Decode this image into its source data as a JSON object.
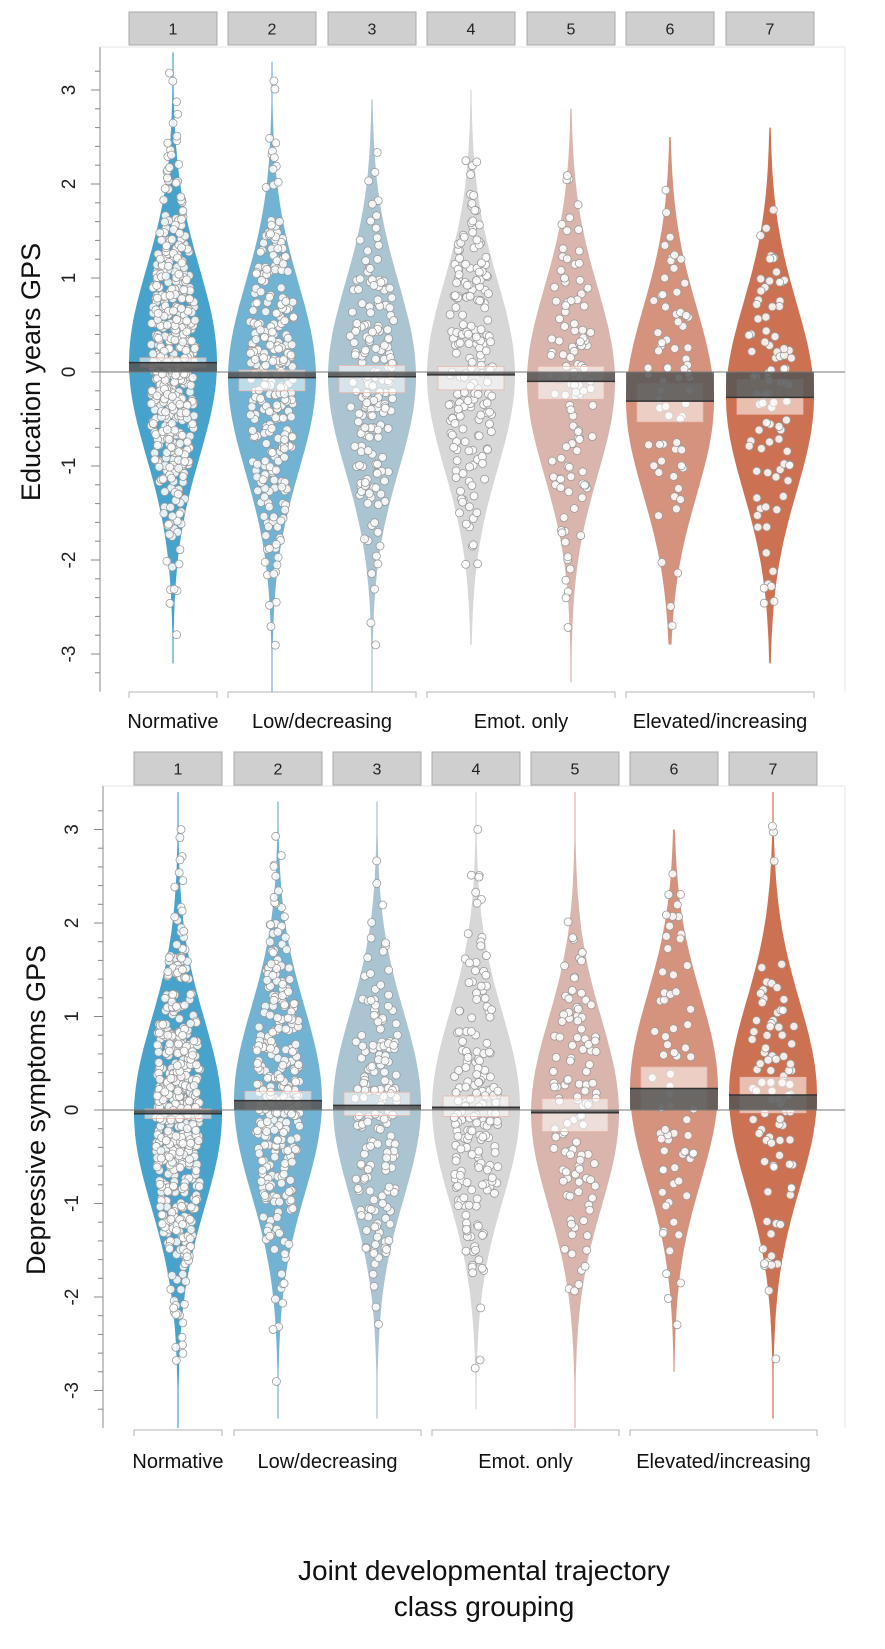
{
  "chart_data": [
    {
      "type": "violin",
      "ylabel": "Education years GPS",
      "ylim": [
        -3.4,
        3.4
      ],
      "yticks": [
        3,
        2,
        1,
        0,
        -1,
        -2,
        -3
      ],
      "ytick_labels": [
        "3",
        "2",
        "1",
        "0",
        "-1",
        "-2",
        "-3"
      ],
      "classes": [
        "1",
        "2",
        "3",
        "4",
        "5",
        "6",
        "7"
      ],
      "groups": [
        {
          "label": "Normative",
          "classes": [
            "1"
          ]
        },
        {
          "label": "Low/decreasing",
          "classes": [
            "2",
            "3"
          ]
        },
        {
          "label": "Emot. only",
          "classes": [
            "4",
            "5"
          ]
        },
        {
          "label": "Elevated/increasing",
          "classes": [
            "6",
            "7"
          ]
        }
      ],
      "colors": [
        "#3d9dc9",
        "#6aaed0",
        "#a7c1cf",
        "#d5d5d5",
        "#d8b1aa",
        "#d38d76",
        "#c96a49"
      ],
      "series": [
        {
          "class": "1",
          "mean": 0.1,
          "ci": [
            0.05,
            0.15
          ],
          "range": [
            -3.1,
            3.4
          ],
          "n": 520
        },
        {
          "class": "2",
          "mean": -0.06,
          "ci": [
            -0.2,
            0.02
          ],
          "range": [
            -3.4,
            3.3
          ],
          "n": 300
        },
        {
          "class": "3",
          "mean": -0.05,
          "ci": [
            -0.22,
            0.07
          ],
          "range": [
            -3.4,
            2.9
          ],
          "n": 180
        },
        {
          "class": "4",
          "mean": -0.03,
          "ci": [
            -0.19,
            0.06
          ],
          "range": [
            -2.9,
            3.0
          ],
          "n": 190
        },
        {
          "class": "5",
          "mean": -0.1,
          "ci": [
            -0.29,
            0.06
          ],
          "range": [
            -3.3,
            2.8
          ],
          "n": 115
        },
        {
          "class": "6",
          "mean": -0.31,
          "ci": [
            -0.53,
            -0.12
          ],
          "range": [
            -2.9,
            2.5
          ],
          "n": 70
        },
        {
          "class": "7",
          "mean": -0.27,
          "ci": [
            -0.45,
            -0.08
          ],
          "range": [
            -3.1,
            2.6
          ],
          "n": 90
        }
      ]
    },
    {
      "type": "violin",
      "ylabel": "Depressive symptoms GPS",
      "xlabel": "Joint developmental trajectory class grouping",
      "ylim": [
        -3.4,
        3.4
      ],
      "yticks": [
        3,
        2,
        1,
        0,
        -1,
        -2,
        -3
      ],
      "ytick_labels": [
        "3",
        "2",
        "1",
        "0",
        "-1",
        "-2",
        "-3"
      ],
      "classes": [
        "1",
        "2",
        "3",
        "4",
        "5",
        "6",
        "7"
      ],
      "groups": [
        {
          "label": "Normative",
          "classes": [
            "1"
          ]
        },
        {
          "label": "Low/decreasing",
          "classes": [
            "2",
            "3"
          ]
        },
        {
          "label": "Emot. only",
          "classes": [
            "4",
            "5"
          ]
        },
        {
          "label": "Elevated/increasing",
          "classes": [
            "6",
            "7"
          ]
        }
      ],
      "colors": [
        "#3d9dc9",
        "#6aaed0",
        "#a7c1cf",
        "#d5d5d5",
        "#d8b1aa",
        "#d38d76",
        "#c96a49"
      ],
      "series": [
        {
          "class": "1",
          "mean": -0.04,
          "ci": [
            -0.09,
            0.01
          ],
          "range": [
            -3.4,
            3.4
          ],
          "n": 520
        },
        {
          "class": "2",
          "mean": 0.1,
          "ci": [
            0.0,
            0.2
          ],
          "range": [
            -3.3,
            3.3
          ],
          "n": 300
        },
        {
          "class": "3",
          "mean": 0.05,
          "ci": [
            -0.06,
            0.19
          ],
          "range": [
            -3.3,
            3.3
          ],
          "n": 180
        },
        {
          "class": "4",
          "mean": 0.03,
          "ci": [
            -0.07,
            0.15
          ],
          "range": [
            -3.2,
            3.4
          ],
          "n": 190
        },
        {
          "class": "5",
          "mean": -0.03,
          "ci": [
            -0.23,
            0.12
          ],
          "range": [
            -3.4,
            3.4
          ],
          "n": 115
        },
        {
          "class": "6",
          "mean": 0.23,
          "ci": [
            0.0,
            0.46
          ],
          "range": [
            -2.8,
            3.0
          ],
          "n": 70
        },
        {
          "class": "7",
          "mean": 0.16,
          "ci": [
            -0.03,
            0.35
          ],
          "range": [
            -3.3,
            3.4
          ],
          "n": 90
        }
      ]
    }
  ]
}
